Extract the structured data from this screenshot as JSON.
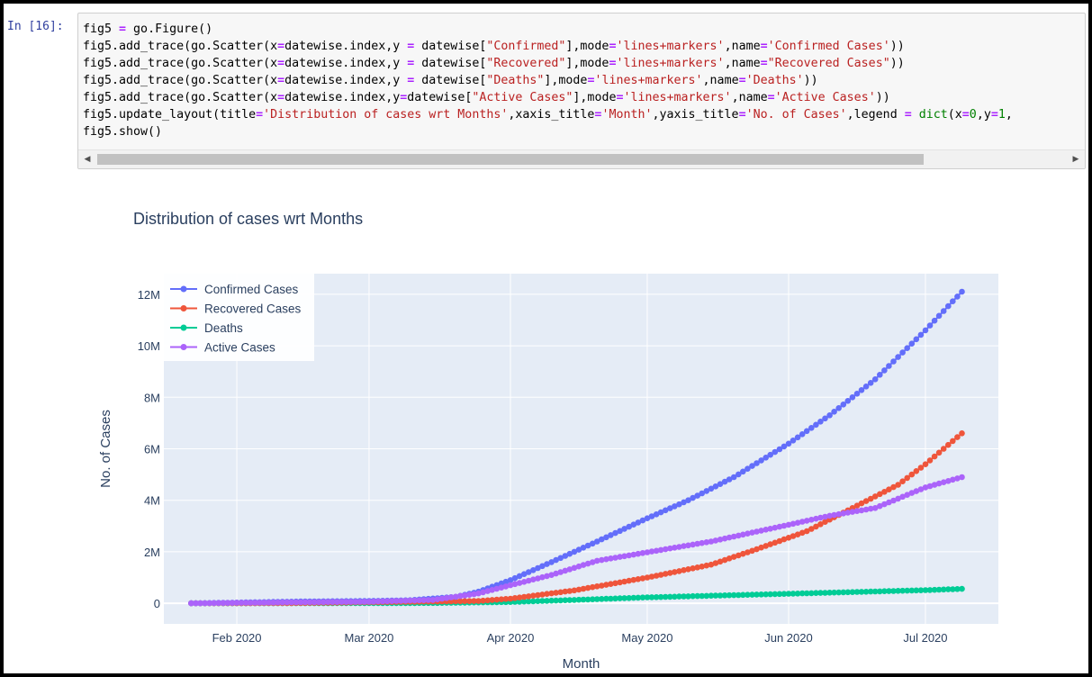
{
  "cell": {
    "prompt": "In [16]:",
    "code_lines": [
      [
        [
          "t",
          "fig5 "
        ],
        [
          "o",
          "="
        ],
        [
          "t",
          " go.Figure()"
        ]
      ],
      [
        [
          "t",
          "fig5.add_trace(go.Scatter(x"
        ],
        [
          "o",
          "="
        ],
        [
          "t",
          "datewise.index,y "
        ],
        [
          "o",
          "="
        ],
        [
          "t",
          " datewise["
        ],
        [
          "s",
          "\"Confirmed\""
        ],
        [
          "t",
          "],mode"
        ],
        [
          "o",
          "="
        ],
        [
          "s",
          "'lines+markers'"
        ],
        [
          "t",
          ",name"
        ],
        [
          "o",
          "="
        ],
        [
          "s",
          "'Confirmed Cases'"
        ],
        [
          "t",
          "))"
        ]
      ],
      [
        [
          "t",
          "fig5.add_trace(go.Scatter(x"
        ],
        [
          "o",
          "="
        ],
        [
          "t",
          "datewise.index,y "
        ],
        [
          "o",
          "="
        ],
        [
          "t",
          " datewise["
        ],
        [
          "s",
          "\"Recovered\""
        ],
        [
          "t",
          "],mode"
        ],
        [
          "o",
          "="
        ],
        [
          "s",
          "'lines+markers'"
        ],
        [
          "t",
          ",name"
        ],
        [
          "o",
          "="
        ],
        [
          "s",
          "\"Recovered Cases\""
        ],
        [
          "t",
          "))"
        ]
      ],
      [
        [
          "t",
          "fig5.add_trace(go.Scatter(x"
        ],
        [
          "o",
          "="
        ],
        [
          "t",
          "datewise.index,y "
        ],
        [
          "o",
          "="
        ],
        [
          "t",
          " datewise["
        ],
        [
          "s",
          "\"Deaths\""
        ],
        [
          "t",
          "],mode"
        ],
        [
          "o",
          "="
        ],
        [
          "s",
          "'lines+markers'"
        ],
        [
          "t",
          ",name"
        ],
        [
          "o",
          "="
        ],
        [
          "s",
          "'Deaths'"
        ],
        [
          "t",
          "))"
        ]
      ],
      [
        [
          "t",
          "fig5.add_trace(go.Scatter(x"
        ],
        [
          "o",
          "="
        ],
        [
          "t",
          "datewise.index,y"
        ],
        [
          "o",
          "="
        ],
        [
          "t",
          "datewise["
        ],
        [
          "s",
          "\"Active Cases\""
        ],
        [
          "t",
          "],mode"
        ],
        [
          "o",
          "="
        ],
        [
          "s",
          "'lines+markers'"
        ],
        [
          "t",
          ",name"
        ],
        [
          "o",
          "="
        ],
        [
          "s",
          "'Active Cases'"
        ],
        [
          "t",
          "))"
        ]
      ],
      [
        [
          "t",
          "fig5.update_layout(title"
        ],
        [
          "o",
          "="
        ],
        [
          "s",
          "'Distribution of cases wrt Months'"
        ],
        [
          "t",
          ",xaxis_title"
        ],
        [
          "o",
          "="
        ],
        [
          "s",
          "'Month'"
        ],
        [
          "t",
          ",yaxis_title"
        ],
        [
          "o",
          "="
        ],
        [
          "s",
          "'No. of Cases'"
        ],
        [
          "t",
          ",legend "
        ],
        [
          "o",
          "="
        ],
        [
          "t",
          " "
        ],
        [
          "k",
          "dict"
        ],
        [
          "t",
          "(x"
        ],
        [
          "o",
          "="
        ],
        [
          "k",
          "0"
        ],
        [
          "t",
          ",y"
        ],
        [
          "o",
          "="
        ],
        [
          "k",
          "1"
        ],
        [
          "t",
          ","
        ]
      ],
      [
        [
          "t",
          "fig5.show()"
        ]
      ]
    ],
    "scroll_left_icon": "triangle-left-icon",
    "scroll_right_icon": "triangle-right-icon"
  },
  "chart_data": {
    "type": "line",
    "title": "Distribution of cases wrt Months",
    "xlabel": "Month",
    "ylabel": "No. of Cases",
    "x_start": "2020-01-22",
    "x_end": "2020-07-09",
    "x_range": [
      "2020-01-16",
      "2020-07-17"
    ],
    "x_ticks": [
      {
        "date": "2020-02-01",
        "label": "Feb 2020"
      },
      {
        "date": "2020-03-01",
        "label": "Mar 2020"
      },
      {
        "date": "2020-04-01",
        "label": "Apr 2020"
      },
      {
        "date": "2020-05-01",
        "label": "May 2020"
      },
      {
        "date": "2020-06-01",
        "label": "Jun 2020"
      },
      {
        "date": "2020-07-01",
        "label": "Jul 2020"
      }
    ],
    "ylim": [
      -800000,
      12800000
    ],
    "y_ticks": [
      {
        "value": 0,
        "label": "0"
      },
      {
        "value": 2000000,
        "label": "2M"
      },
      {
        "value": 4000000,
        "label": "4M"
      },
      {
        "value": 6000000,
        "label": "6M"
      },
      {
        "value": 8000000,
        "label": "8M"
      },
      {
        "value": 10000000,
        "label": "10M"
      },
      {
        "value": 12000000,
        "label": "12M"
      }
    ],
    "grid": true,
    "legend_position": "top-left",
    "plot_bgcolor": "#e5ecf6",
    "series": [
      {
        "name": "Confirmed Cases",
        "color": "#636efa",
        "keypoints": [
          [
            "2020-01-22",
            0
          ],
          [
            "2020-02-15",
            70000
          ],
          [
            "2020-03-01",
            90000
          ],
          [
            "2020-03-10",
            120000
          ],
          [
            "2020-03-20",
            250000
          ],
          [
            "2020-03-25",
            450000
          ],
          [
            "2020-04-01",
            900000
          ],
          [
            "2020-04-10",
            1600000
          ],
          [
            "2020-04-20",
            2400000
          ],
          [
            "2020-05-01",
            3300000
          ],
          [
            "2020-05-10",
            4000000
          ],
          [
            "2020-05-20",
            4900000
          ],
          [
            "2020-06-01",
            6200000
          ],
          [
            "2020-06-10",
            7300000
          ],
          [
            "2020-06-20",
            8700000
          ],
          [
            "2020-07-01",
            10600000
          ],
          [
            "2020-07-09",
            12100000
          ]
        ]
      },
      {
        "name": "Recovered Cases",
        "color": "#ef553b",
        "keypoints": [
          [
            "2020-01-22",
            0
          ],
          [
            "2020-02-15",
            10000
          ],
          [
            "2020-03-01",
            40000
          ],
          [
            "2020-03-15",
            70000
          ],
          [
            "2020-03-25",
            90000
          ],
          [
            "2020-04-01",
            180000
          ],
          [
            "2020-04-15",
            500000
          ],
          [
            "2020-05-01",
            1000000
          ],
          [
            "2020-05-15",
            1500000
          ],
          [
            "2020-05-25",
            2100000
          ],
          [
            "2020-06-05",
            2800000
          ],
          [
            "2020-06-15",
            3700000
          ],
          [
            "2020-06-25",
            4600000
          ],
          [
            "2020-07-01",
            5400000
          ],
          [
            "2020-07-09",
            6600000
          ]
        ]
      },
      {
        "name": "Deaths",
        "color": "#00cc96",
        "keypoints": [
          [
            "2020-01-22",
            0
          ],
          [
            "2020-03-15",
            10000
          ],
          [
            "2020-04-01",
            50000
          ],
          [
            "2020-04-15",
            130000
          ],
          [
            "2020-05-01",
            230000
          ],
          [
            "2020-06-01",
            370000
          ],
          [
            "2020-07-01",
            510000
          ],
          [
            "2020-07-09",
            560000
          ]
        ]
      },
      {
        "name": "Active Cases",
        "color": "#ab63fa",
        "keypoints": [
          [
            "2020-01-22",
            0
          ],
          [
            "2020-02-15",
            40000
          ],
          [
            "2020-03-01",
            60000
          ],
          [
            "2020-03-15",
            130000
          ],
          [
            "2020-03-25",
            380000
          ],
          [
            "2020-04-01",
            700000
          ],
          [
            "2020-04-10",
            1100000
          ],
          [
            "2020-04-20",
            1650000
          ],
          [
            "2020-05-01",
            1980000
          ],
          [
            "2020-05-15",
            2400000
          ],
          [
            "2020-06-01",
            3050000
          ],
          [
            "2020-06-10",
            3400000
          ],
          [
            "2020-06-20",
            3700000
          ],
          [
            "2020-07-01",
            4500000
          ],
          [
            "2020-07-09",
            4900000
          ]
        ]
      }
    ]
  }
}
